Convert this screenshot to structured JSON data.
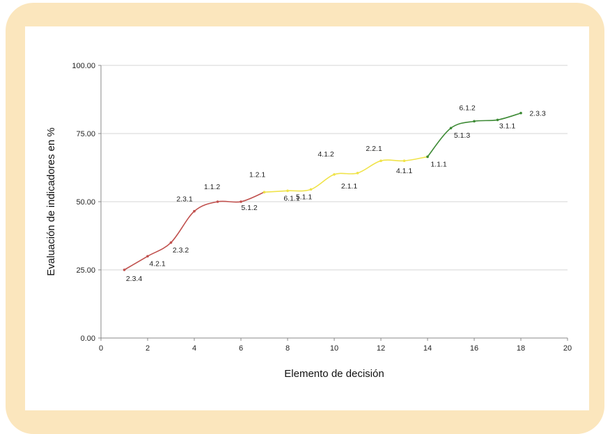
{
  "chart_data": {
    "type": "line",
    "xlabel": "Elemento de decisión",
    "ylabel": "Evaluación de indicadores en %",
    "xlim": [
      0,
      20
    ],
    "ylim": [
      0,
      100
    ],
    "x_ticks": [
      "0",
      "2",
      "4",
      "6",
      "8",
      "10",
      "12",
      "14",
      "16",
      "18",
      "20"
    ],
    "y_ticks": [
      "0.00",
      "25.00",
      "50.00",
      "75.00",
      "100.00"
    ],
    "grid": "horizontal",
    "series": [
      {
        "color": "#c0504d",
        "points": [
          {
            "x": 1,
            "y": 25.0,
            "label": "2.3.4"
          },
          {
            "x": 2,
            "y": 30.0,
            "label": "4.2.1"
          },
          {
            "x": 3,
            "y": 35.0,
            "label": "2.3.2"
          },
          {
            "x": 4,
            "y": 46.5,
            "label": "2.3.1"
          },
          {
            "x": 5,
            "y": 50.0,
            "label": "1.1.2"
          },
          {
            "x": 6,
            "y": 50.0,
            "label": "5.1.2"
          },
          {
            "x": 7,
            "y": 53.5,
            "label": "1.2.1"
          }
        ]
      },
      {
        "color": "#f0e34a",
        "points": [
          {
            "x": 7,
            "y": 53.5,
            "label": ""
          },
          {
            "x": 8,
            "y": 54.0,
            "label": "6.1.1"
          },
          {
            "x": 9,
            "y": 54.5,
            "label": "5.1.1"
          },
          {
            "x": 10,
            "y": 60.0,
            "label": "4.1.2"
          },
          {
            "x": 11,
            "y": 60.5,
            "label": "2.1.1"
          },
          {
            "x": 12,
            "y": 65.0,
            "label": "2.2.1"
          },
          {
            "x": 13,
            "y": 65.0,
            "label": "4.1.1"
          },
          {
            "x": 14,
            "y": 66.5,
            "label": ""
          }
        ]
      },
      {
        "color": "#3d8a35",
        "points": [
          {
            "x": 14,
            "y": 66.5,
            "label": "1.1.1"
          },
          {
            "x": 15,
            "y": 77.0,
            "label": "5.1.3"
          },
          {
            "x": 16,
            "y": 79.5,
            "label": "6.1.2"
          },
          {
            "x": 17,
            "y": 80.0,
            "label": "3.1.1"
          },
          {
            "x": 18,
            "y": 82.5,
            "label": "2.3.3"
          }
        ]
      }
    ]
  }
}
